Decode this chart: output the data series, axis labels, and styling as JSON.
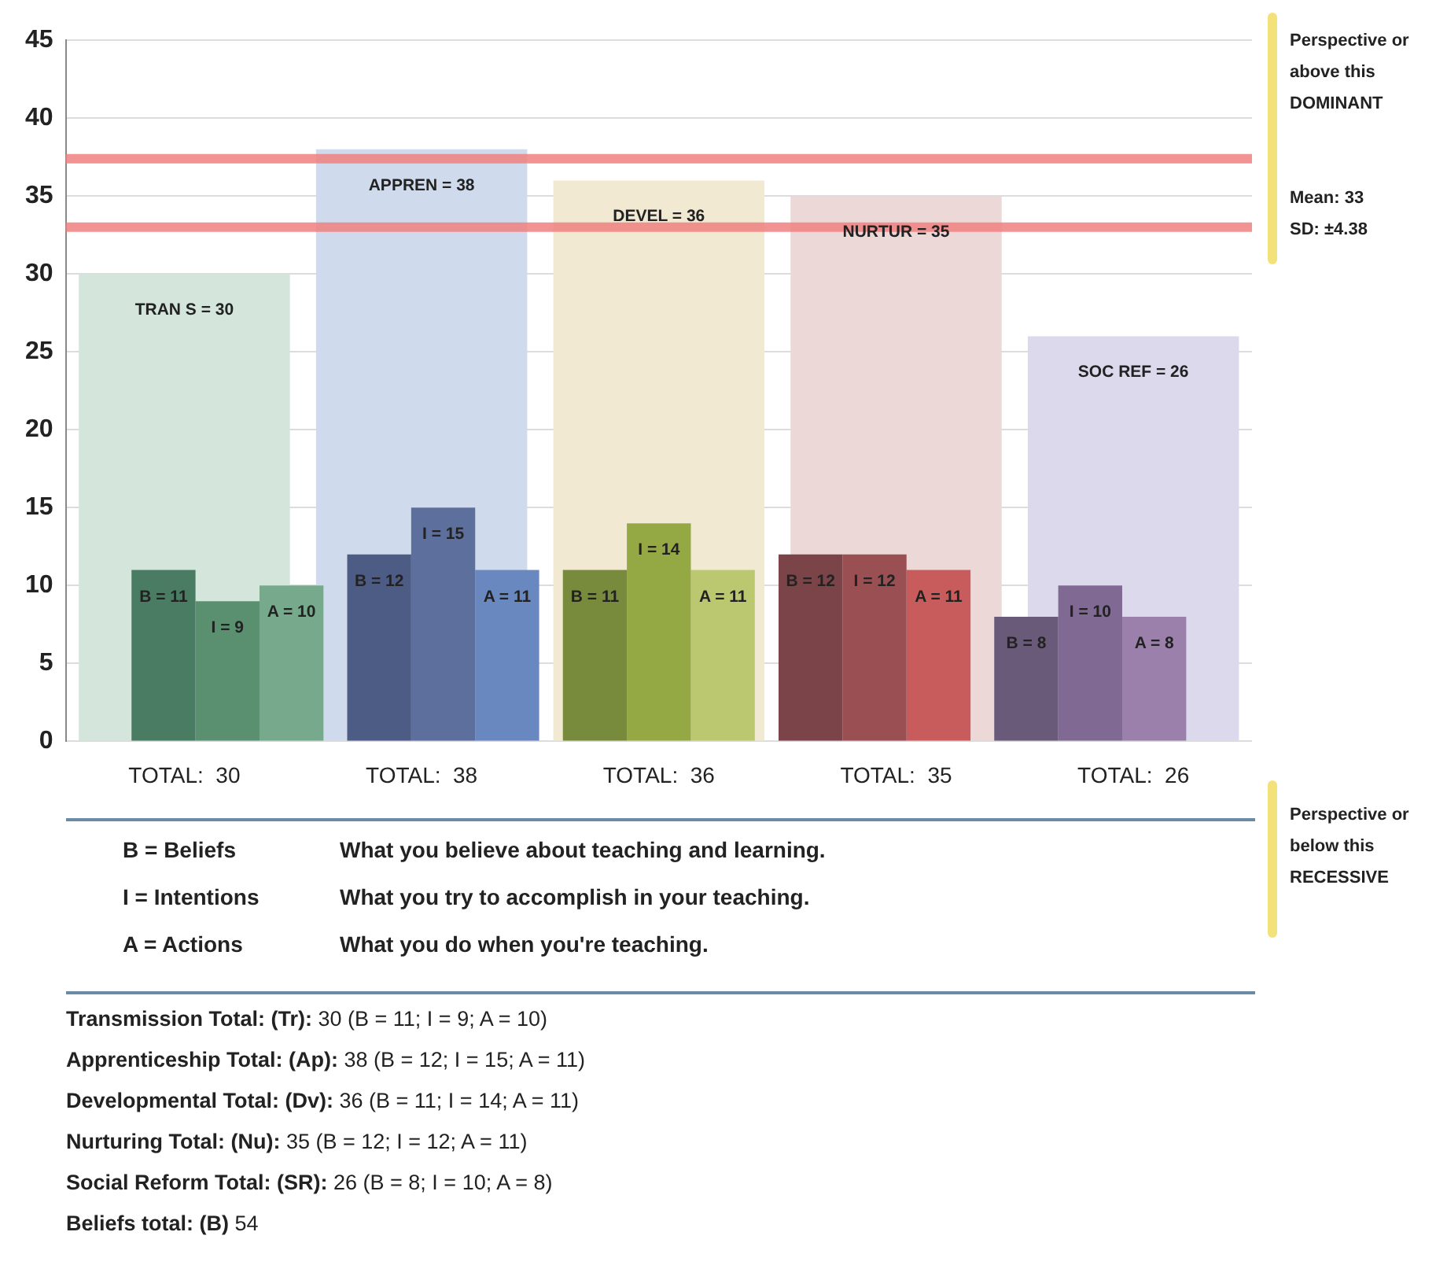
{
  "chart_data": {
    "type": "bar",
    "categories": [
      "TOTAL:  30",
      "TOTAL:  38",
      "TOTAL:  36",
      "TOTAL:  35",
      "TOTAL:  26"
    ],
    "series": [
      {
        "values": [
          30,
          38,
          36,
          35,
          26
        ],
        "colors": [
          "#d4e5dc",
          "#cfdbec",
          "#f1e9d2",
          "#edd8d8",
          "#dcd9ec"
        ],
        "value_labels": [
          "TRAN S = 30",
          "APPREN = 38",
          "DEVEL = 36",
          "NURTUR = 35",
          "SOC REF = 26"
        ]
      },
      {
        "values": [
          11,
          12,
          11,
          12,
          8
        ],
        "colors": [
          "#4a7c64",
          "#4d5c85",
          "#788a3c",
          "#7a4448",
          "#6a5a7a"
        ],
        "value_labels": [
          "B = 11",
          "B = 12",
          "B = 11",
          "B = 12",
          "B = 8"
        ]
      },
      {
        "values": [
          9,
          15,
          14,
          12,
          10
        ],
        "colors": [
          "#5a8f70",
          "#5d6f9c",
          "#94a843",
          "#9a4f52",
          "#806a94"
        ],
        "value_labels": [
          "I = 9",
          "I = 15",
          "I = 14",
          "I = 12",
          "I = 10"
        ]
      },
      {
        "values": [
          10,
          11,
          11,
          11,
          8
        ],
        "colors": [
          "#77aa8c",
          "#6a88c0",
          "#bcc870",
          "#c85c5c",
          "#9a80aa"
        ],
        "value_labels": [
          "A = 10",
          "A = 11",
          "A = 11",
          "A = 11",
          "A = 8"
        ]
      }
    ],
    "ylim": [
      0,
      45
    ],
    "yticks": [
      0,
      5,
      10,
      15,
      20,
      25,
      30,
      35,
      40,
      45
    ],
    "grid": "y",
    "ref_lines": [
      {
        "axis": "y",
        "value": 37.4,
        "color": "#f08080"
      },
      {
        "axis": "y",
        "value": 33,
        "color": "#f08080"
      }
    ],
    "annotations": [
      "Perspective or above this DOMINANT",
      "Mean: 33",
      "SD: ±4.38",
      "Perspective or below this RECESSIVE",
      "B = Beliefs",
      "What you believe about teaching and learning.",
      "I = Intentions",
      "What you try to accomplish in your teaching.",
      "A = Actions",
      "What you do when you're teaching.",
      "Transmission Total: (Tr):   30 (B = 11; I = 9; A = 10)",
      "Apprenticeship Total: (Ap):   38 (B = 12; I = 15; A = 11)",
      "Developmental Total: (Dv):   36 (B = 11; I = 14; A = 11)",
      "Nurturing Total: (Nu):   35 (B = 12; I = 12; A = 11)",
      "Social Reform Total: (SR):   26 (B = 8; I = 10; A = 8)",
      "Beliefs total: (B)  54"
    ]
  }
}
